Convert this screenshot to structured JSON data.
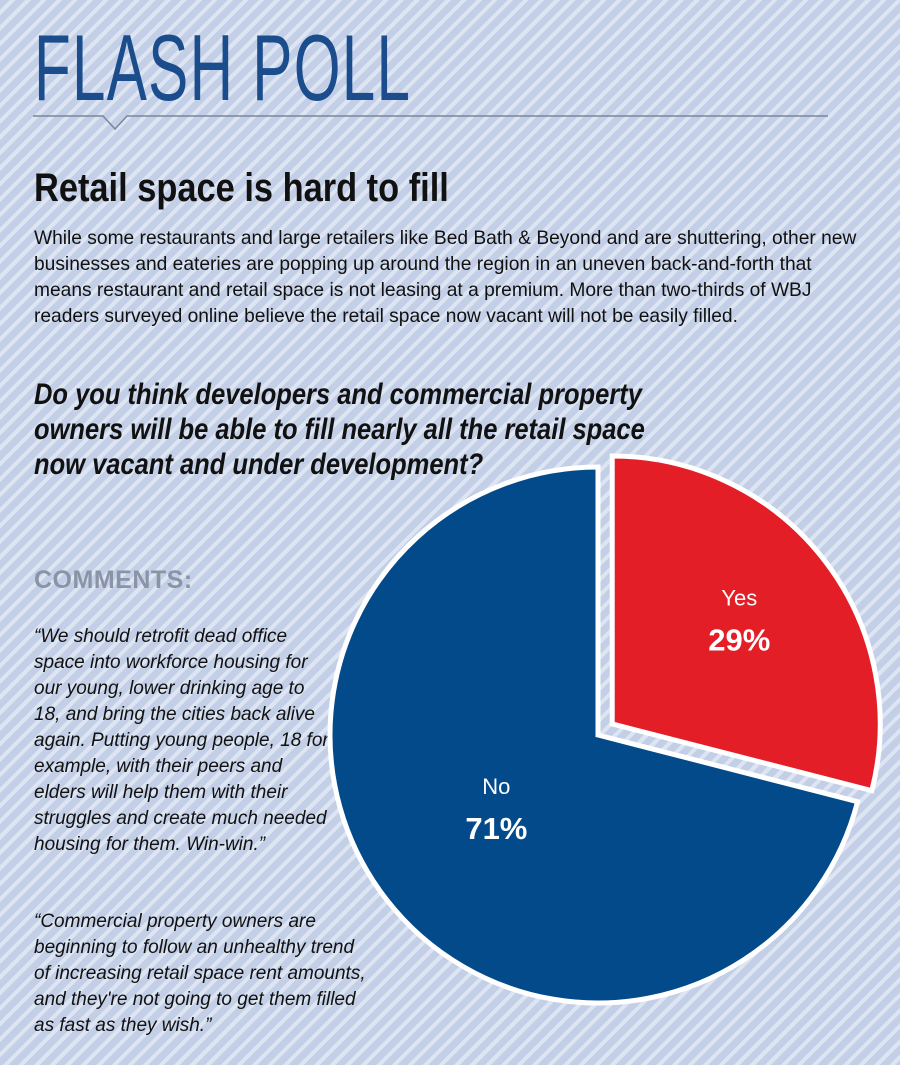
{
  "header": {
    "heading": "FLASH POLL",
    "title": "Retail space is hard to fill",
    "intro": "While some restaurants and large retailers like Bed Bath & Beyond and are shuttering, other new businesses and eateries are popping up around the region in an uneven back-and-forth that means restaurant and retail space is not leasing at a premium. More than two-thirds of WBJ readers surveyed online believe the retail space now vacant will not be easily filled."
  },
  "question": "Do you think developers and commercial property owners will be able to fill nearly all the retail space now vacant and under development?",
  "comments": {
    "label": "COMMENTS:",
    "items": [
      "“We should retrofit dead office space into workforce housing for our young, lower drinking age to 18, and bring the cities back alive again. Putting young people, 18 for example, with their peers and elders will help them with their struggles and create much needed housing for them. Win-win.”",
      "“Commercial property owners are beginning to follow an unhealthy trend of increasing retail space rent amounts, and they're not going to get them filled as fast as they wish.”"
    ]
  },
  "colors": {
    "heading": "#1b4d8c",
    "yes": "#e31e26",
    "no": "#034a8a",
    "outline": "#ffffff"
  },
  "chart_data": {
    "type": "pie",
    "title": "",
    "slices": [
      {
        "label": "Yes",
        "value": 29,
        "display": "29%",
        "color": "#e31e26",
        "exploded": true
      },
      {
        "label": "No",
        "value": 71,
        "display": "71%",
        "color": "#034a8a",
        "exploded": false
      }
    ]
  }
}
